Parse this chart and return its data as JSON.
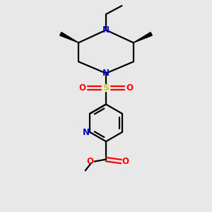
{
  "background_color": "#e8e8e8",
  "line_color": "#000000",
  "n_color": "#0000cc",
  "o_color": "#ff0000",
  "s_color": "#cccc00",
  "bond_width": 1.6,
  "figsize": [
    3.0,
    3.0
  ],
  "dpi": 100,
  "xlim": [
    0,
    10
  ],
  "ylim": [
    0,
    10
  ]
}
